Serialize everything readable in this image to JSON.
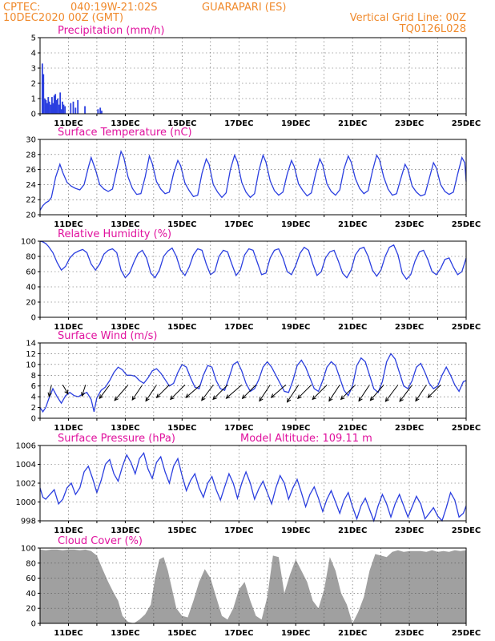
{
  "header": {
    "source": "CPTEC:",
    "coords": "040:19W-21:02S",
    "location": "GUARAPARI (ES)",
    "run": "10DEC2020 00Z (GMT)",
    "grid_note": "Vertical Grid Line: 00Z",
    "code": "TQ0126L028"
  },
  "colors": {
    "header": "#f08a2c",
    "title": "#e0129e",
    "series": "#2b3fe0",
    "cloud": "#a0a0a0",
    "wind_arrow": "#000000"
  },
  "chart_data": [
    {
      "type": "bar",
      "title": "Precipitation (mm/h)",
      "day_start": 10,
      "day_end": 25,
      "ylim": [
        0,
        5
      ],
      "yticks": [
        0,
        1,
        2,
        3,
        4,
        5
      ],
      "date_ticks": [
        "11DEC",
        "13DEC",
        "15DEC",
        "17DEC",
        "19DEC",
        "21DEC",
        "23DEC",
        "25DEC"
      ],
      "x": [
        10.08,
        10.12,
        10.17,
        10.21,
        10.25,
        10.29,
        10.33,
        10.38,
        10.42,
        10.46,
        10.5,
        10.54,
        10.58,
        10.62,
        10.67,
        10.71,
        10.75,
        10.79,
        10.83,
        10.88,
        11.08,
        11.17,
        11.25,
        11.33,
        11.58,
        12.04,
        12.12,
        12.17
      ],
      "values": [
        3.3,
        2.6,
        1.0,
        0.9,
        0.7,
        1.1,
        0.8,
        0.6,
        1.1,
        0.7,
        1.2,
        1.3,
        0.9,
        1.0,
        0.6,
        1.4,
        0.3,
        0.8,
        0.6,
        0.5,
        0.7,
        0.8,
        0.4,
        0.9,
        0.5,
        0.3,
        0.4,
        0.2
      ]
    },
    {
      "type": "line",
      "title": "Surface Temperature (nC)",
      "day_start": 10,
      "day_end": 25,
      "ylim": [
        20,
        30
      ],
      "yticks": [
        20,
        22,
        24,
        26,
        28,
        30
      ],
      "date_ticks": [
        "11DEC",
        "13DEC",
        "15DEC",
        "17DEC",
        "19DEC",
        "21DEC",
        "23DEC",
        "25DEC"
      ],
      "x": [
        10.0,
        10.1,
        10.2,
        10.3,
        10.4,
        10.55,
        10.7,
        10.8,
        10.95,
        11.1,
        11.25,
        11.4,
        11.55,
        11.7,
        11.8,
        11.95,
        12.1,
        12.25,
        12.4,
        12.55,
        12.7,
        12.85,
        12.95,
        13.1,
        13.25,
        13.4,
        13.55,
        13.7,
        13.85,
        13.95,
        14.1,
        14.25,
        14.4,
        14.55,
        14.7,
        14.85,
        14.95,
        15.1,
        15.25,
        15.4,
        15.55,
        15.7,
        15.85,
        15.95,
        16.1,
        16.25,
        16.4,
        16.55,
        16.7,
        16.85,
        16.95,
        17.1,
        17.25,
        17.4,
        17.55,
        17.7,
        17.85,
        17.95,
        18.1,
        18.25,
        18.4,
        18.55,
        18.7,
        18.85,
        18.95,
        19.1,
        19.25,
        19.4,
        19.55,
        19.7,
        19.85,
        19.95,
        20.1,
        20.25,
        20.4,
        20.55,
        20.7,
        20.85,
        20.95,
        21.1,
        21.25,
        21.4,
        21.55,
        21.7,
        21.85,
        21.95,
        22.1,
        22.25,
        22.4,
        22.55,
        22.7,
        22.85,
        22.95,
        23.1,
        23.25,
        23.4,
        23.55,
        23.7,
        23.85,
        23.95,
        24.1,
        24.25,
        24.4,
        24.55,
        24.7,
        24.85,
        24.95,
        25.0
      ],
      "values": [
        20.6,
        21.2,
        21.6,
        21.8,
        22.3,
        25.0,
        26.7,
        25.6,
        24.3,
        23.8,
        23.5,
        23.3,
        24.0,
        26.3,
        27.6,
        26.0,
        24.0,
        23.4,
        23.1,
        23.4,
        26.0,
        28.4,
        27.6,
        25.0,
        23.5,
        22.7,
        22.8,
        25.0,
        27.8,
        26.8,
        24.4,
        23.4,
        22.8,
        23.0,
        25.5,
        27.2,
        26.5,
        24.2,
        23.2,
        22.4,
        22.6,
        25.5,
        27.4,
        26.7,
        24.0,
        23.0,
        22.3,
        22.9,
        26.0,
        27.9,
        27.0,
        24.3,
        23.0,
        22.3,
        22.8,
        25.8,
        27.9,
        27.0,
        24.5,
        23.2,
        22.6,
        23.0,
        25.4,
        27.2,
        26.4,
        24.1,
        23.2,
        22.5,
        22.9,
        25.4,
        27.4,
        26.6,
        24.1,
        23.1,
        22.6,
        23.3,
        26.1,
        27.8,
        27.0,
        24.8,
        23.5,
        22.8,
        23.2,
        25.8,
        27.9,
        27.3,
        25.0,
        23.4,
        22.6,
        22.8,
        24.8,
        26.7,
        26.0,
        23.8,
        23.0,
        22.5,
        22.7,
        24.8,
        26.9,
        26.2,
        24.0,
        23.1,
        22.7,
        23.0,
        25.4,
        27.6,
        26.9,
        24.4
      ]
    },
    {
      "type": "line",
      "title": "Relative Humidity (%)",
      "day_start": 10,
      "day_end": 25,
      "ylim": [
        0,
        100
      ],
      "yticks": [
        0,
        20,
        40,
        60,
        80,
        100
      ],
      "date_ticks": [
        "11DEC",
        "13DEC",
        "15DEC",
        "17DEC",
        "19DEC",
        "21DEC",
        "23DEC",
        "25DEC"
      ],
      "x": [
        10.0,
        10.1,
        10.2,
        10.3,
        10.45,
        10.6,
        10.75,
        10.9,
        11.05,
        11.2,
        11.35,
        11.5,
        11.65,
        11.8,
        11.95,
        12.1,
        12.25,
        12.4,
        12.55,
        12.7,
        12.85,
        13.0,
        13.15,
        13.3,
        13.45,
        13.6,
        13.75,
        13.9,
        14.05,
        14.2,
        14.35,
        14.5,
        14.65,
        14.8,
        14.95,
        15.1,
        15.25,
        15.4,
        15.55,
        15.7,
        15.85,
        16.0,
        16.15,
        16.3,
        16.45,
        16.6,
        16.75,
        16.9,
        17.05,
        17.2,
        17.35,
        17.5,
        17.65,
        17.8,
        17.95,
        18.1,
        18.25,
        18.4,
        18.55,
        18.7,
        18.85,
        19.0,
        19.15,
        19.3,
        19.45,
        19.6,
        19.75,
        19.9,
        20.05,
        20.2,
        20.35,
        20.5,
        20.65,
        20.8,
        20.95,
        21.1,
        21.25,
        21.4,
        21.55,
        21.7,
        21.85,
        22.0,
        22.15,
        22.3,
        22.45,
        22.6,
        22.75,
        22.9,
        23.05,
        23.2,
        23.35,
        23.5,
        23.65,
        23.8,
        23.95,
        24.1,
        24.25,
        24.4,
        24.55,
        24.7,
        24.85,
        25.0
      ],
      "values": [
        100,
        99,
        97,
        93,
        85,
        72,
        62,
        67,
        78,
        84,
        87,
        89,
        85,
        70,
        62,
        70,
        83,
        88,
        90,
        85,
        62,
        52,
        58,
        72,
        84,
        88,
        78,
        58,
        52,
        62,
        80,
        87,
        91,
        80,
        62,
        55,
        66,
        82,
        90,
        88,
        70,
        56,
        60,
        80,
        88,
        86,
        70,
        55,
        62,
        82,
        90,
        88,
        72,
        56,
        58,
        78,
        88,
        90,
        78,
        60,
        56,
        68,
        84,
        92,
        88,
        70,
        55,
        60,
        78,
        86,
        88,
        74,
        58,
        52,
        62,
        82,
        90,
        92,
        80,
        62,
        54,
        62,
        80,
        92,
        95,
        82,
        58,
        50,
        56,
        74,
        86,
        88,
        76,
        60,
        56,
        64,
        76,
        78,
        66,
        56,
        60,
        78
      ]
    },
    {
      "type": "line",
      "title": "Surface Wind (m/s)",
      "day_start": 10,
      "day_end": 25,
      "ylim": [
        0,
        14
      ],
      "yticks": [
        0,
        2,
        4,
        6,
        8,
        10,
        12,
        14
      ],
      "date_ticks": [
        "11DEC",
        "13DEC",
        "15DEC",
        "17DEC",
        "19DEC",
        "21DEC",
        "23DEC",
        "25DEC"
      ],
      "x": [
        10.0,
        10.1,
        10.2,
        10.3,
        10.45,
        10.6,
        10.75,
        10.9,
        11.05,
        11.2,
        11.35,
        11.5,
        11.65,
        11.8,
        11.9,
        12.0,
        12.15,
        12.3,
        12.45,
        12.6,
        12.75,
        12.9,
        13.05,
        13.2,
        13.35,
        13.5,
        13.65,
        13.8,
        13.95,
        14.1,
        14.25,
        14.4,
        14.55,
        14.7,
        14.85,
        15.0,
        15.15,
        15.3,
        15.45,
        15.6,
        15.75,
        15.9,
        16.05,
        16.2,
        16.35,
        16.5,
        16.65,
        16.8,
        16.95,
        17.1,
        17.25,
        17.4,
        17.55,
        17.7,
        17.85,
        18.0,
        18.15,
        18.3,
        18.45,
        18.6,
        18.75,
        18.9,
        19.05,
        19.2,
        19.35,
        19.5,
        19.65,
        19.8,
        19.95,
        20.1,
        20.25,
        20.4,
        20.55,
        20.7,
        20.85,
        21.0,
        21.15,
        21.3,
        21.45,
        21.6,
        21.75,
        21.9,
        22.05,
        22.2,
        22.35,
        22.5,
        22.65,
        22.8,
        22.95,
        23.1,
        23.25,
        23.4,
        23.55,
        23.7,
        23.85,
        24.0,
        24.15,
        24.3,
        24.45,
        24.6,
        24.75,
        24.9,
        25.0
      ],
      "values": [
        2.0,
        1.2,
        2.0,
        3.5,
        5.5,
        4.0,
        2.8,
        4.2,
        4.8,
        4.2,
        4.0,
        4.5,
        4.8,
        3.5,
        1.2,
        3.8,
        5.2,
        5.8,
        7.0,
        8.5,
        9.5,
        9.0,
        8.0,
        8.0,
        7.8,
        7.0,
        6.5,
        7.5,
        8.8,
        9.2,
        8.4,
        7.2,
        6.0,
        6.5,
        8.5,
        10.0,
        9.5,
        7.5,
        5.8,
        5.5,
        8.0,
        9.8,
        9.5,
        7.0,
        5.5,
        5.2,
        7.5,
        10.0,
        10.5,
        8.8,
        6.5,
        5.0,
        5.5,
        7.2,
        9.5,
        10.5,
        9.5,
        8.0,
        6.5,
        5.0,
        4.8,
        7.0,
        9.8,
        10.8,
        9.5,
        7.5,
        5.5,
        5.0,
        7.0,
        9.5,
        10.5,
        9.8,
        7.5,
        5.2,
        4.2,
        6.0,
        9.8,
        11.2,
        10.5,
        8.0,
        5.5,
        4.8,
        6.8,
        10.5,
        12.0,
        11.0,
        8.5,
        6.0,
        5.5,
        7.0,
        9.5,
        10.2,
        8.5,
        6.5,
        5.5,
        6.0,
        8.0,
        9.5,
        8.0,
        6.2,
        5.0,
        6.8,
        7.0
      ],
      "arrow_days": [
        10.4,
        10.8,
        11.6,
        12.45,
        13.1,
        13.6,
        14.1,
        14.55,
        15.1,
        15.65,
        16.1,
        16.6,
        17.1,
        17.6,
        18.1,
        18.65,
        19.1,
        19.55,
        20.1,
        20.55,
        21.1,
        21.6,
        22.1,
        22.6,
        23.1,
        23.6,
        24.1
      ],
      "arrow_u": [
        -0.2,
        0.5,
        -0.3,
        -0.6,
        -0.65,
        -0.55,
        -0.55,
        -0.7,
        -0.7,
        -0.75,
        -0.6,
        -0.7,
        -0.75,
        -0.7,
        -0.55,
        -0.75,
        -0.55,
        -0.7,
        -0.7,
        -0.55,
        -0.7,
        -0.55,
        -0.65,
        -0.6,
        -0.6,
        -0.55,
        -0.7
      ],
      "arrow_v": [
        -0.98,
        -0.86,
        -0.95,
        -0.8,
        -0.75,
        -0.83,
        -0.83,
        -0.7,
        -0.7,
        -0.65,
        -0.8,
        -0.7,
        -0.65,
        -0.7,
        -0.83,
        -0.65,
        -0.83,
        -0.7,
        -0.7,
        -0.83,
        -0.7,
        -0.83,
        -0.75,
        -0.8,
        -0.8,
        -0.83,
        -0.7
      ],
      "arrow_speed": [
        3.0,
        2.5,
        3.0,
        5.0,
        6.5,
        5.5,
        6.0,
        5.5,
        6.5,
        6.0,
        6.0,
        6.5,
        6.5,
        6.0,
        6.0,
        6.0,
        6.5,
        6.0,
        6.5,
        6.0,
        6.5,
        6.0,
        6.5,
        6.5,
        6.5,
        6.0,
        5.5
      ]
    },
    {
      "type": "line",
      "title": "Surface Pressure (hPa)",
      "annotation": "Model Altitude: 109.11 m",
      "day_start": 10,
      "day_end": 25,
      "ylim": [
        998,
        1006
      ],
      "yticks": [
        998,
        1000,
        1002,
        1004,
        1006
      ],
      "date_ticks": [
        "11DEC",
        "13DEC",
        "15DEC",
        "17DEC",
        "19DEC",
        "21DEC",
        "23DEC",
        "25DEC"
      ],
      "x": [
        10.0,
        10.1,
        10.2,
        10.35,
        10.5,
        10.65,
        10.8,
        10.95,
        11.1,
        11.25,
        11.4,
        11.55,
        11.7,
        11.85,
        12.0,
        12.15,
        12.3,
        12.45,
        12.6,
        12.75,
        12.9,
        13.05,
        13.2,
        13.35,
        13.5,
        13.65,
        13.8,
        13.95,
        14.1,
        14.25,
        14.4,
        14.55,
        14.7,
        14.85,
        15.0,
        15.15,
        15.3,
        15.45,
        15.6,
        15.75,
        15.9,
        16.05,
        16.2,
        16.35,
        16.5,
        16.65,
        16.8,
        16.95,
        17.1,
        17.25,
        17.4,
        17.55,
        17.7,
        17.85,
        18.0,
        18.15,
        18.3,
        18.45,
        18.6,
        18.75,
        18.9,
        19.05,
        19.2,
        19.35,
        19.5,
        19.65,
        19.8,
        19.95,
        20.1,
        20.25,
        20.4,
        20.55,
        20.7,
        20.85,
        21.0,
        21.15,
        21.3,
        21.45,
        21.6,
        21.75,
        21.9,
        22.05,
        22.2,
        22.35,
        22.5,
        22.65,
        22.8,
        22.95,
        23.1,
        23.25,
        23.4,
        23.55,
        23.7,
        23.85,
        24.0,
        24.15,
        24.3,
        24.45,
        24.6,
        24.75,
        24.9,
        25.0
      ],
      "values": [
        1001.5,
        1000.5,
        1000.3,
        1000.8,
        1001.3,
        999.8,
        1000.3,
        1001.5,
        1002.0,
        1000.8,
        1001.5,
        1003.2,
        1003.8,
        1002.5,
        1001.0,
        1002.3,
        1004.0,
        1004.5,
        1003.0,
        1002.2,
        1003.8,
        1005.0,
        1004.2,
        1003.0,
        1004.6,
        1005.2,
        1003.5,
        1002.5,
        1004.2,
        1004.8,
        1003.2,
        1002.0,
        1003.8,
        1004.6,
        1002.8,
        1001.2,
        1002.3,
        1003.0,
        1001.5,
        1000.5,
        1002.0,
        1002.7,
        1001.3,
        1000.2,
        1001.6,
        1003.0,
        1002.0,
        1000.4,
        1002.0,
        1003.2,
        1002.0,
        1000.3,
        1001.4,
        1002.2,
        1001.0,
        999.8,
        1001.5,
        1002.8,
        1002.0,
        1000.3,
        1001.5,
        1002.4,
        1001.0,
        999.5,
        1000.8,
        1001.6,
        1000.4,
        999.0,
        1000.3,
        1001.2,
        1000.0,
        998.8,
        1000.2,
        1001.0,
        999.5,
        998.2,
        999.6,
        1000.4,
        999.2,
        998.0,
        999.6,
        1000.8,
        999.8,
        998.4,
        999.8,
        1000.8,
        999.6,
        998.4,
        999.5,
        1000.6,
        999.8,
        998.2,
        998.8,
        999.4,
        998.5,
        998.0,
        999.4,
        1001.0,
        1000.2,
        998.4,
        998.8,
        999.6
      ]
    },
    {
      "type": "area",
      "title": "Cloud Cover (%)",
      "day_start": 10,
      "day_end": 25,
      "ylim": [
        0,
        100
      ],
      "yticks": [
        0,
        20,
        40,
        60,
        80,
        100
      ],
      "date_ticks": [
        "11DEC",
        "13DEC",
        "15DEC",
        "17DEC",
        "19DEC",
        "21DEC",
        "23DEC",
        "25DEC"
      ],
      "x": [
        10.0,
        10.2,
        10.4,
        10.6,
        10.8,
        11.0,
        11.2,
        11.4,
        11.6,
        11.8,
        12.0,
        12.2,
        12.4,
        12.6,
        12.75,
        12.9,
        13.1,
        13.3,
        13.5,
        13.7,
        13.9,
        14.05,
        14.2,
        14.35,
        14.5,
        14.65,
        14.8,
        15.0,
        15.2,
        15.4,
        15.6,
        15.8,
        16.0,
        16.2,
        16.4,
        16.6,
        16.8,
        17.0,
        17.2,
        17.4,
        17.6,
        17.8,
        18.0,
        18.2,
        18.4,
        18.6,
        18.8,
        19.0,
        19.2,
        19.4,
        19.6,
        19.8,
        20.0,
        20.2,
        20.4,
        20.6,
        20.8,
        21.0,
        21.2,
        21.4,
        21.6,
        21.8,
        22.0,
        22.2,
        22.4,
        22.6,
        22.8,
        23.0,
        23.2,
        23.4,
        23.6,
        23.8,
        24.0,
        24.2,
        24.4,
        24.6,
        24.8,
        25.0
      ],
      "values": [
        98,
        97,
        98,
        98,
        97,
        98,
        98,
        97,
        98,
        96,
        90,
        72,
        55,
        40,
        30,
        10,
        2,
        0,
        5,
        12,
        25,
        60,
        85,
        88,
        70,
        45,
        20,
        10,
        8,
        30,
        55,
        72,
        60,
        35,
        10,
        5,
        20,
        45,
        55,
        30,
        10,
        5,
        35,
        90,
        88,
        40,
        65,
        85,
        70,
        55,
        30,
        20,
        45,
        88,
        70,
        40,
        25,
        0,
        15,
        35,
        70,
        92,
        90,
        88,
        95,
        97,
        95,
        96,
        96,
        96,
        95,
        97,
        95,
        96,
        95,
        97,
        96,
        97
      ]
    }
  ]
}
